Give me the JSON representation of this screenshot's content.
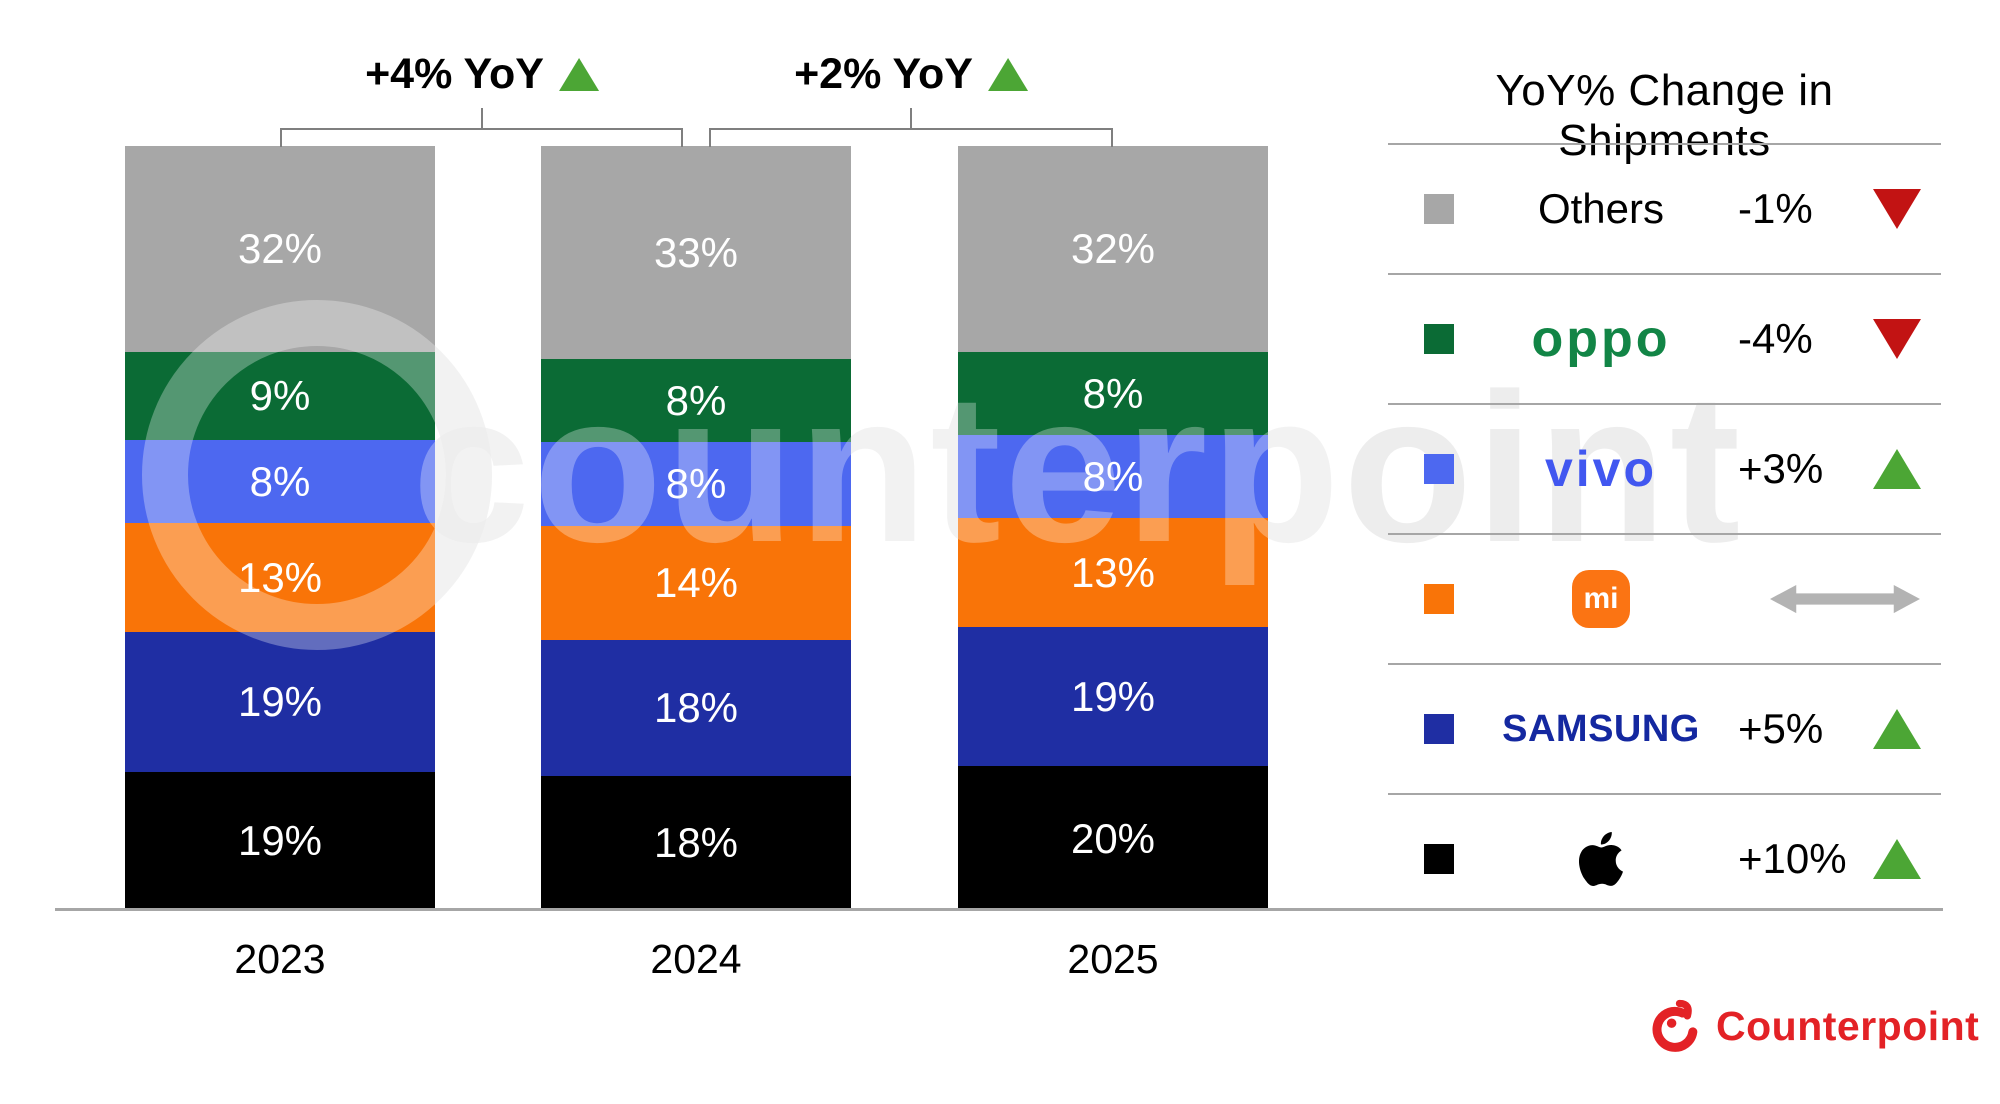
{
  "watermark": "counterpoint",
  "chart_data": {
    "type": "bar",
    "stacked": true,
    "unit": "%",
    "title": "",
    "xlabel": "",
    "ylabel": "",
    "ylim": [
      0,
      100
    ],
    "legend_position": "right",
    "categories": [
      "2023",
      "2024",
      "2025"
    ],
    "segment_order_top_to_bottom": [
      "Others",
      "OPPO",
      "vivo",
      "Xiaomi",
      "Samsung",
      "Apple"
    ],
    "series": [
      {
        "name": "Others",
        "color": "#a7a7a7",
        "values": [
          32,
          33,
          32
        ],
        "labels": [
          "32%",
          "33%",
          "32%"
        ]
      },
      {
        "name": "OPPO",
        "color": "#0b6b35",
        "values": [
          9,
          8,
          8
        ],
        "labels": [
          "9%",
          "8%",
          "8%"
        ]
      },
      {
        "name": "vivo",
        "color": "#4d68f0",
        "values": [
          8,
          8,
          8
        ],
        "labels": [
          "8%",
          "8%",
          "8%"
        ]
      },
      {
        "name": "Xiaomi",
        "color": "#f97408",
        "values": [
          13,
          14,
          13
        ],
        "labels": [
          "13%",
          "14%",
          "13%"
        ]
      },
      {
        "name": "Samsung",
        "color": "#1f2ea3",
        "values": [
          19,
          18,
          19
        ],
        "labels": [
          "19%",
          "18%",
          "19%"
        ]
      },
      {
        "name": "Apple",
        "color": "#000000",
        "values": [
          19,
          18,
          20
        ],
        "labels": [
          "19%",
          "18%",
          "20%"
        ]
      }
    ],
    "annotations": [
      {
        "label": "+4% YoY",
        "direction": "up",
        "between": [
          "2023",
          "2024"
        ]
      },
      {
        "label": "+2% YoY",
        "direction": "up",
        "between": [
          "2024",
          "2025"
        ]
      }
    ]
  },
  "legend": {
    "title": "YoY% Change in Shipments",
    "rows": [
      {
        "brand": "Others",
        "display": "Others",
        "change": "-1%",
        "direction": "down",
        "swatch": "#a7a7a7",
        "logo_color": "#000000"
      },
      {
        "brand": "OPPO",
        "display": "oppo",
        "change": "-4%",
        "direction": "down",
        "swatch": "#0b6b35",
        "logo_color": "#128546"
      },
      {
        "brand": "vivo",
        "display": "vivo",
        "change": "+3%",
        "direction": "up",
        "swatch": "#4d68f0",
        "logo_color": "#4157f0"
      },
      {
        "brand": "Xiaomi",
        "display": "mi",
        "change": "",
        "direction": "flat",
        "swatch": "#f97408",
        "logo_color": "#fb7413"
      },
      {
        "brand": "Samsung",
        "display": "SAMSUNG",
        "change": "+5%",
        "direction": "up",
        "swatch": "#1f2ea3",
        "logo_color": "#1428a0"
      },
      {
        "brand": "Apple",
        "display": "",
        "change": "+10%",
        "direction": "up",
        "swatch": "#000000",
        "logo_color": "#000000"
      }
    ]
  },
  "colors": {
    "up_triangle": "#4ca635",
    "down_triangle": "#c21313",
    "flat_arrow": "#b3b3b3",
    "brand_red": "#e32226",
    "axis_line": "#a6a6a6",
    "bracket": "#7f7f7f"
  },
  "footer": {
    "brand": "Counterpoint"
  }
}
